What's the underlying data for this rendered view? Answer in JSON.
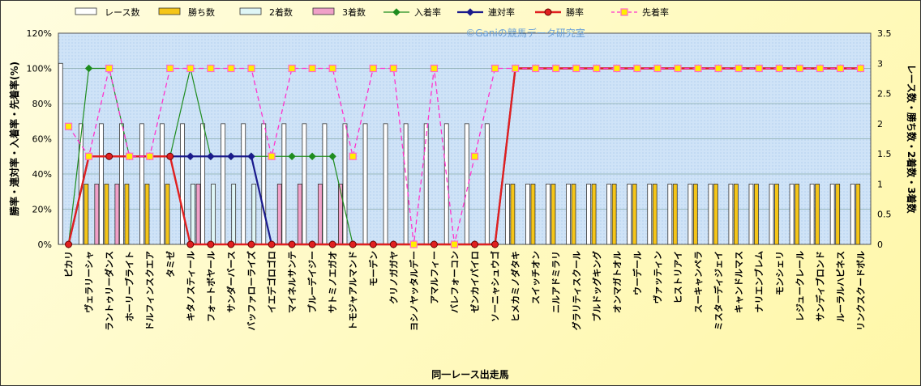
{
  "chart_data": {
    "type": "bar",
    "watermark": "©Ganiの競馬データ研究室",
    "xlabel": "同一レース出走馬",
    "ylabel_left": "勝率・連対率・入着率・先着率(%)",
    "ylabel_right": "レース数・勝ち数・2着数・3着数",
    "ylim_left": [
      0,
      120
    ],
    "ylim_right": [
      0,
      3.5
    ],
    "yticks_left": [
      "0%",
      "20%",
      "40%",
      "60%",
      "80%",
      "100%",
      "120%"
    ],
    "yticks_right": [
      "0",
      "0.5",
      "1",
      "1.5",
      "2",
      "2.5",
      "3",
      "3.5"
    ],
    "grid": true,
    "legend_position": "top",
    "categories": [
      "ピカリ",
      "ヴェラリーシャ",
      "ラントゥリーダンス",
      "ホーリーブライト",
      "ドルフィンスクエア",
      "タミゼ",
      "キタノスティール",
      "フォートボヤール",
      "サンダーバース",
      "バッファローライズ",
      "イエデゴロゴロ",
      "マイネルサンテ",
      "ブルーデイジー",
      "サトミノエガオ",
      "トモジャアルマンド",
      "モーデン",
      "クリノガガヤ",
      "ヨシノヤッタルデー",
      "アマルフィー",
      "バレフォーコン",
      "ゼンカイパイロ",
      "ソーニャシュウゴ",
      "ヒメカミノダタキ",
      "スイッチオン",
      "ニルアドミラリ",
      "グラリティスクール",
      "ブルドッグキング",
      "オンマガトオル",
      "ウーデール",
      "ヴァッティン",
      "ヒストリアイ",
      "スーキャンペラ",
      "ミスターディジェイ",
      "キャンドルマス",
      "ナリエンブレム",
      "モンシェリ",
      "レジュークレール",
      "サンディブロンド",
      "ルーラルハピネス",
      "リンクスクードボル"
    ],
    "series": [
      {
        "name": "レース数",
        "kind": "bar",
        "axis": "right",
        "color": "#ffffff",
        "values": [
          3,
          2,
          2,
          2,
          2,
          2,
          2,
          2,
          2,
          2,
          2,
          2,
          2,
          2,
          2,
          2,
          2,
          2,
          2,
          2,
          2,
          2,
          1,
          1,
          1,
          1,
          1,
          1,
          1,
          1,
          1,
          1,
          1,
          1,
          1,
          1,
          1,
          1,
          1,
          1
        ]
      },
      {
        "name": "勝ち数",
        "kind": "bar",
        "axis": "right",
        "color": "#f5c518",
        "values": [
          0,
          1,
          1,
          1,
          1,
          1,
          0,
          0,
          0,
          0,
          0,
          0,
          0,
          0,
          0,
          0,
          0,
          0,
          0,
          0,
          0,
          0,
          1,
          1,
          1,
          1,
          1,
          1,
          1,
          1,
          1,
          1,
          1,
          1,
          1,
          1,
          1,
          1,
          1,
          1
        ]
      },
      {
        "name": "2着数",
        "kind": "bar",
        "axis": "right",
        "color": "#dff6f6",
        "values": [
          0,
          0,
          0,
          0,
          0,
          0,
          1,
          1,
          1,
          1,
          0,
          0,
          0,
          0,
          0,
          0,
          0,
          0,
          0,
          0,
          0,
          0,
          0,
          0,
          0,
          0,
          0,
          0,
          0,
          0,
          0,
          0,
          0,
          0,
          0,
          0,
          0,
          0,
          0,
          0
        ]
      },
      {
        "name": "3着数",
        "kind": "bar",
        "axis": "right",
        "color": "#f0a0c8",
        "values": [
          0,
          1,
          1,
          0,
          0,
          0,
          1,
          0,
          0,
          0,
          1,
          1,
          1,
          1,
          0,
          0,
          0,
          0,
          0,
          0,
          0,
          0,
          0,
          0,
          0,
          0,
          0,
          0,
          0,
          0,
          0,
          0,
          0,
          0,
          0,
          0,
          0,
          0,
          0,
          0
        ]
      },
      {
        "name": "入着率",
        "kind": "line",
        "axis": "left",
        "color": "#1f8c1f",
        "values": [
          0,
          100,
          100,
          50,
          50,
          50,
          100,
          50,
          50,
          50,
          50,
          50,
          50,
          50,
          0,
          0,
          0,
          0,
          0,
          0,
          0,
          0,
          100,
          100,
          100,
          100,
          100,
          100,
          100,
          100,
          100,
          100,
          100,
          100,
          100,
          100,
          100,
          100,
          100,
          100
        ]
      },
      {
        "name": "連対率",
        "kind": "line",
        "axis": "left",
        "color": "#1a1a8c",
        "values": [
          0,
          50,
          50,
          50,
          50,
          50,
          50,
          50,
          50,
          50,
          0,
          0,
          0,
          0,
          0,
          0,
          0,
          0,
          0,
          0,
          0,
          0,
          100,
          100,
          100,
          100,
          100,
          100,
          100,
          100,
          100,
          100,
          100,
          100,
          100,
          100,
          100,
          100,
          100,
          100
        ]
      },
      {
        "name": "勝率",
        "kind": "line",
        "axis": "left",
        "color": "#e02020",
        "values": [
          0,
          50,
          50,
          50,
          50,
          50,
          0,
          0,
          0,
          0,
          0,
          0,
          0,
          0,
          0,
          0,
          0,
          0,
          0,
          0,
          0,
          0,
          100,
          100,
          100,
          100,
          100,
          100,
          100,
          100,
          100,
          100,
          100,
          100,
          100,
          100,
          100,
          100,
          100,
          100
        ]
      },
      {
        "name": "先着率",
        "kind": "line",
        "axis": "left",
        "color": "#ff33cc",
        "values": [
          67,
          50,
          100,
          50,
          50,
          100,
          100,
          100,
          100,
          100,
          50,
          100,
          100,
          100,
          50,
          100,
          100,
          0,
          100,
          0,
          50,
          100,
          100,
          100,
          100,
          100,
          100,
          100,
          100,
          100,
          100,
          100,
          100,
          100,
          100,
          100,
          100,
          100,
          100,
          100
        ]
      }
    ]
  }
}
